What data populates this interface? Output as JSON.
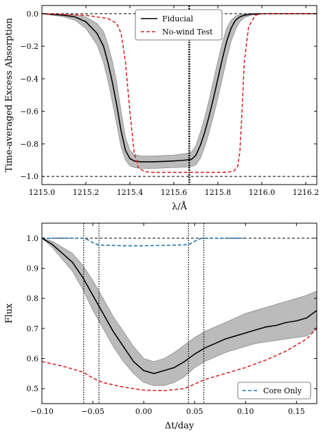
{
  "chart_data": [
    {
      "type": "line",
      "xlabel": "λ/Å",
      "ylabel": "Time-averaged Excess Absorption",
      "xlim": [
        1215.0,
        1216.25
      ],
      "ylim": [
        -1.05,
        0.05
      ],
      "xticks": [
        1215.0,
        1215.2,
        1215.4,
        1215.6,
        1215.8,
        1216.0,
        1216.2
      ],
      "xtick_labels": [
        "1215.0",
        "1215.2",
        "1215.4",
        "1215.6",
        "1215.8",
        "1216.0",
        "1216.2"
      ],
      "yticks": [
        0.0,
        -0.2,
        -0.4,
        -0.6,
        -0.8,
        -1.0
      ],
      "ytick_labels": [
        "0.0",
        "−0.2",
        "−0.4",
        "−0.6",
        "−0.8",
        "−1.0"
      ],
      "grid": false,
      "legend": "top-center",
      "hlines": [
        0.0,
        -1.0
      ],
      "vline_x": 1215.67,
      "series": [
        {
          "name": "Fiducial",
          "style": "solid",
          "color": "#000000",
          "x": [
            1215.0,
            1215.1,
            1215.15,
            1215.2,
            1215.25,
            1215.28,
            1215.3,
            1215.32,
            1215.34,
            1215.36,
            1215.38,
            1215.4,
            1215.42,
            1215.45,
            1215.5,
            1215.55,
            1215.6,
            1215.65,
            1215.68,
            1215.7,
            1215.72,
            1215.74,
            1215.76,
            1215.78,
            1215.8,
            1215.82,
            1215.84,
            1215.86,
            1215.88,
            1215.9,
            1215.92,
            1215.95,
            1216.0,
            1216.1,
            1216.2,
            1216.25
          ],
          "y": [
            0.0,
            -0.01,
            -0.02,
            -0.05,
            -0.12,
            -0.2,
            -0.3,
            -0.42,
            -0.56,
            -0.72,
            -0.84,
            -0.89,
            -0.905,
            -0.91,
            -0.91,
            -0.908,
            -0.905,
            -0.9,
            -0.895,
            -0.87,
            -0.81,
            -0.73,
            -0.63,
            -0.52,
            -0.4,
            -0.28,
            -0.17,
            -0.09,
            -0.04,
            -0.02,
            -0.01,
            -0.003,
            0.0,
            0.0,
            0.0,
            0.0
          ],
          "band_lower": [
            0.0,
            -0.02,
            -0.04,
            -0.09,
            -0.19,
            -0.3,
            -0.41,
            -0.54,
            -0.68,
            -0.82,
            -0.9,
            -0.935,
            -0.945,
            -0.95,
            -0.95,
            -0.948,
            -0.945,
            -0.943,
            -0.94,
            -0.93,
            -0.89,
            -0.82,
            -0.73,
            -0.63,
            -0.52,
            -0.4,
            -0.28,
            -0.17,
            -0.1,
            -0.05,
            -0.025,
            -0.01,
            -0.002,
            0.0,
            0.0,
            0.0
          ],
          "band_upper": [
            0.0,
            -0.003,
            -0.008,
            -0.02,
            -0.06,
            -0.11,
            -0.19,
            -0.29,
            -0.42,
            -0.6,
            -0.76,
            -0.84,
            -0.865,
            -0.875,
            -0.875,
            -0.872,
            -0.868,
            -0.86,
            -0.85,
            -0.81,
            -0.73,
            -0.64,
            -0.53,
            -0.41,
            -0.29,
            -0.18,
            -0.09,
            -0.04,
            -0.015,
            -0.006,
            -0.002,
            0.0,
            0.0,
            0.0,
            0.0,
            0.0
          ]
        },
        {
          "name": "No-wind Test",
          "style": "dashed",
          "color": "#d62728",
          "x": [
            1215.0,
            1215.2,
            1215.3,
            1215.34,
            1215.36,
            1215.38,
            1215.4,
            1215.42,
            1215.44,
            1215.47,
            1215.5,
            1215.6,
            1215.7,
            1215.8,
            1215.84,
            1215.87,
            1215.89,
            1215.9,
            1215.91,
            1215.92,
            1215.94,
            1215.97,
            1216.0,
            1216.1,
            1216.25
          ],
          "y": [
            0.0,
            -0.01,
            -0.03,
            -0.06,
            -0.12,
            -0.3,
            -0.6,
            -0.86,
            -0.95,
            -0.97,
            -0.975,
            -0.975,
            -0.975,
            -0.975,
            -0.974,
            -0.97,
            -0.94,
            -0.85,
            -0.6,
            -0.3,
            -0.08,
            -0.01,
            0.0,
            0.0,
            0.0
          ]
        }
      ]
    },
    {
      "type": "line",
      "xlabel": "Δt/day",
      "ylabel": "Flux",
      "xlim": [
        -0.1,
        0.17
      ],
      "ylim": [
        0.45,
        1.05
      ],
      "xticks": [
        -0.1,
        -0.05,
        0.0,
        0.05,
        0.1,
        0.15
      ],
      "xtick_labels": [
        "−0.10",
        "−0.05",
        "0.00",
        "0.05",
        "0.10",
        "0.15"
      ],
      "yticks": [
        0.5,
        0.6,
        0.7,
        0.8,
        0.9,
        1.0
      ],
      "ytick_labels": [
        "0.5",
        "0.6",
        "0.7",
        "0.8",
        "0.9",
        "1.0"
      ],
      "grid": false,
      "legend": "bottom-right",
      "hlines": [
        1.0
      ],
      "vlines_x": [
        -0.059,
        -0.044,
        0.044,
        0.059
      ],
      "series": [
        {
          "name": "",
          "style": "solid",
          "color": "#000000",
          "x": [
            -0.1,
            -0.09,
            -0.08,
            -0.07,
            -0.06,
            -0.05,
            -0.04,
            -0.03,
            -0.02,
            -0.01,
            0.0,
            0.01,
            0.02,
            0.03,
            0.04,
            0.05,
            0.06,
            0.07,
            0.08,
            0.09,
            0.1,
            0.11,
            0.12,
            0.13,
            0.14,
            0.15,
            0.16,
            0.17
          ],
          "y": [
            1.0,
            0.98,
            0.95,
            0.92,
            0.87,
            0.81,
            0.75,
            0.69,
            0.64,
            0.59,
            0.56,
            0.55,
            0.56,
            0.57,
            0.59,
            0.615,
            0.635,
            0.65,
            0.665,
            0.675,
            0.685,
            0.695,
            0.705,
            0.71,
            0.72,
            0.725,
            0.735,
            0.76
          ],
          "band_lower": [
            1.0,
            0.97,
            0.93,
            0.89,
            0.83,
            0.76,
            0.7,
            0.64,
            0.59,
            0.55,
            0.52,
            0.51,
            0.51,
            0.52,
            0.54,
            0.57,
            0.59,
            0.605,
            0.62,
            0.63,
            0.64,
            0.65,
            0.655,
            0.66,
            0.665,
            0.67,
            0.675,
            0.7
          ],
          "band_upper": [
            1.0,
            0.99,
            0.97,
            0.95,
            0.91,
            0.86,
            0.8,
            0.74,
            0.69,
            0.64,
            0.6,
            0.59,
            0.6,
            0.62,
            0.645,
            0.67,
            0.69,
            0.705,
            0.72,
            0.735,
            0.75,
            0.76,
            0.77,
            0.78,
            0.79,
            0.8,
            0.81,
            0.825
          ]
        },
        {
          "name": "",
          "style": "dashed",
          "color": "#d62728",
          "x": [
            -0.1,
            -0.08,
            -0.06,
            -0.05,
            -0.04,
            -0.02,
            0.0,
            0.02,
            0.04,
            0.05,
            0.06,
            0.08,
            0.1,
            0.12,
            0.14,
            0.16,
            0.17
          ],
          "y": [
            0.59,
            0.575,
            0.555,
            0.535,
            0.52,
            0.505,
            0.495,
            0.493,
            0.5,
            0.515,
            0.53,
            0.55,
            0.57,
            0.595,
            0.625,
            0.665,
            0.7
          ]
        },
        {
          "name": "Core Only",
          "style": "dashed",
          "color": "#1f77b4",
          "x": [
            -0.1,
            -0.06,
            -0.055,
            -0.05,
            -0.045,
            -0.04,
            -0.02,
            0.0,
            0.02,
            0.04,
            0.045,
            0.05,
            0.055,
            0.06,
            0.1
          ],
          "y": [
            1.0,
            1.0,
            0.995,
            0.985,
            0.978,
            0.977,
            0.975,
            0.975,
            0.976,
            0.978,
            0.98,
            0.99,
            0.998,
            1.0,
            1.0
          ]
        }
      ]
    }
  ]
}
